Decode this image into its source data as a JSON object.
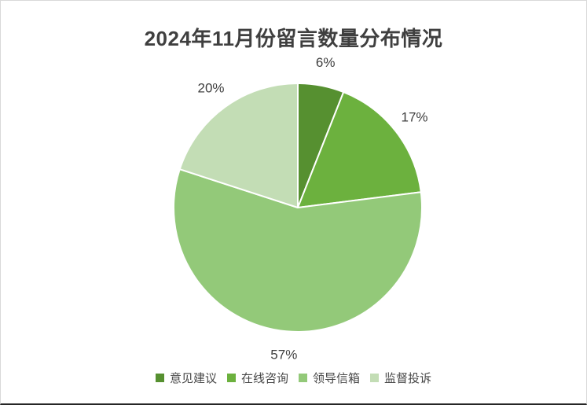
{
  "chart_data": {
    "type": "pie",
    "title": "2024年11月份留言数量分布情况",
    "categories": [
      "意见建议",
      "在线咨询",
      "领导信箱",
      "监督投诉"
    ],
    "values": [
      6,
      17,
      57,
      20
    ],
    "labels": [
      "6%",
      "17%",
      "57%",
      "20%"
    ],
    "colors": [
      "#569030",
      "#6CB13E",
      "#93C979",
      "#C3DDB5"
    ],
    "start_angle_deg": 0,
    "direction": "clockwise",
    "legend_position": "bottom",
    "slice_border_color": "#FFFFFF"
  },
  "frame": {
    "background": "#FFFFFF",
    "border_color": "#D9D9D9",
    "bottom_edge_color": "#262626",
    "title_color": "#3F3F3F",
    "label_color": "#404040"
  }
}
